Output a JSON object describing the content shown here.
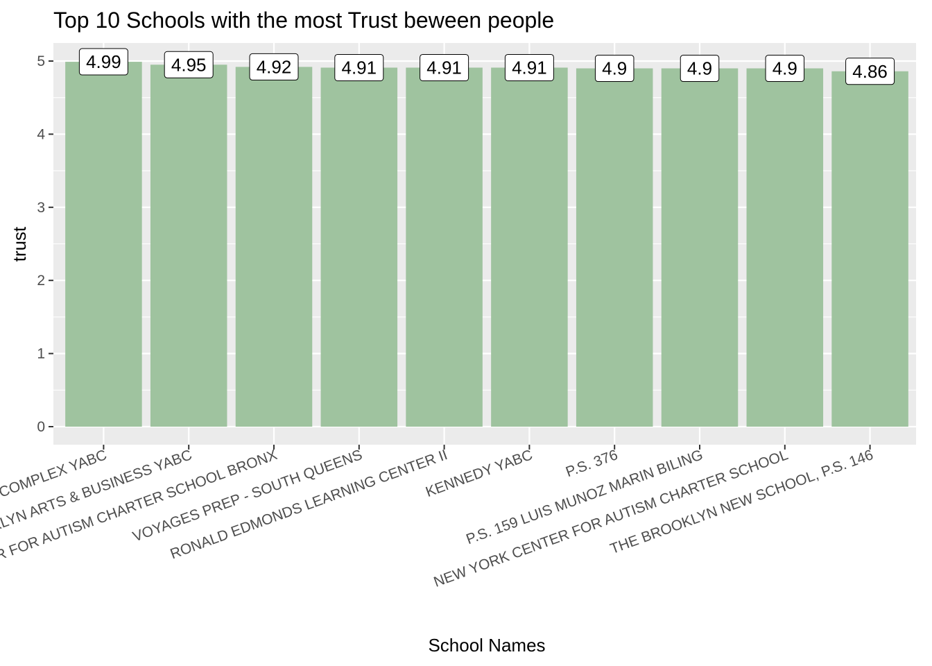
{
  "chart_data": {
    "type": "bar",
    "title": "Top 10 Schools with the most Trust beween people",
    "xlabel": "School Names",
    "ylabel": "trust",
    "ylim": [
      0,
      5.25
    ],
    "yticks": [
      0,
      1,
      2,
      3,
      4,
      5
    ],
    "grid": true,
    "bar_color": "#9fc39f",
    "panel_color": "#ebebeb",
    "categories": [
      "ACADEMY COMPLEX YABC",
      "BROOKLYN ARTS & BUSINESS YABC",
      "NEW YORK CENTER FOR AUTISM CHARTER SCHOOL BRONX",
      "VOYAGES PREP - SOUTH QUEENS",
      "RONALD EDMONDS LEARNING CENTER II",
      "KENNEDY YABC",
      "P.S. 376",
      "P.S. 159 LUIS MUNOZ MARIN BILING",
      "NEW YORK CENTER FOR AUTISM CHARTER SCHOOL",
      "THE BROOKLYN NEW SCHOOL, P.S. 146"
    ],
    "values": [
      4.99,
      4.95,
      4.92,
      4.91,
      4.91,
      4.91,
      4.9,
      4.9,
      4.9,
      4.86
    ],
    "value_labels": [
      "4.99",
      "4.95",
      "4.92",
      "4.91",
      "4.91",
      "4.91",
      "4.9",
      "4.9",
      "4.9",
      "4.86"
    ]
  }
}
